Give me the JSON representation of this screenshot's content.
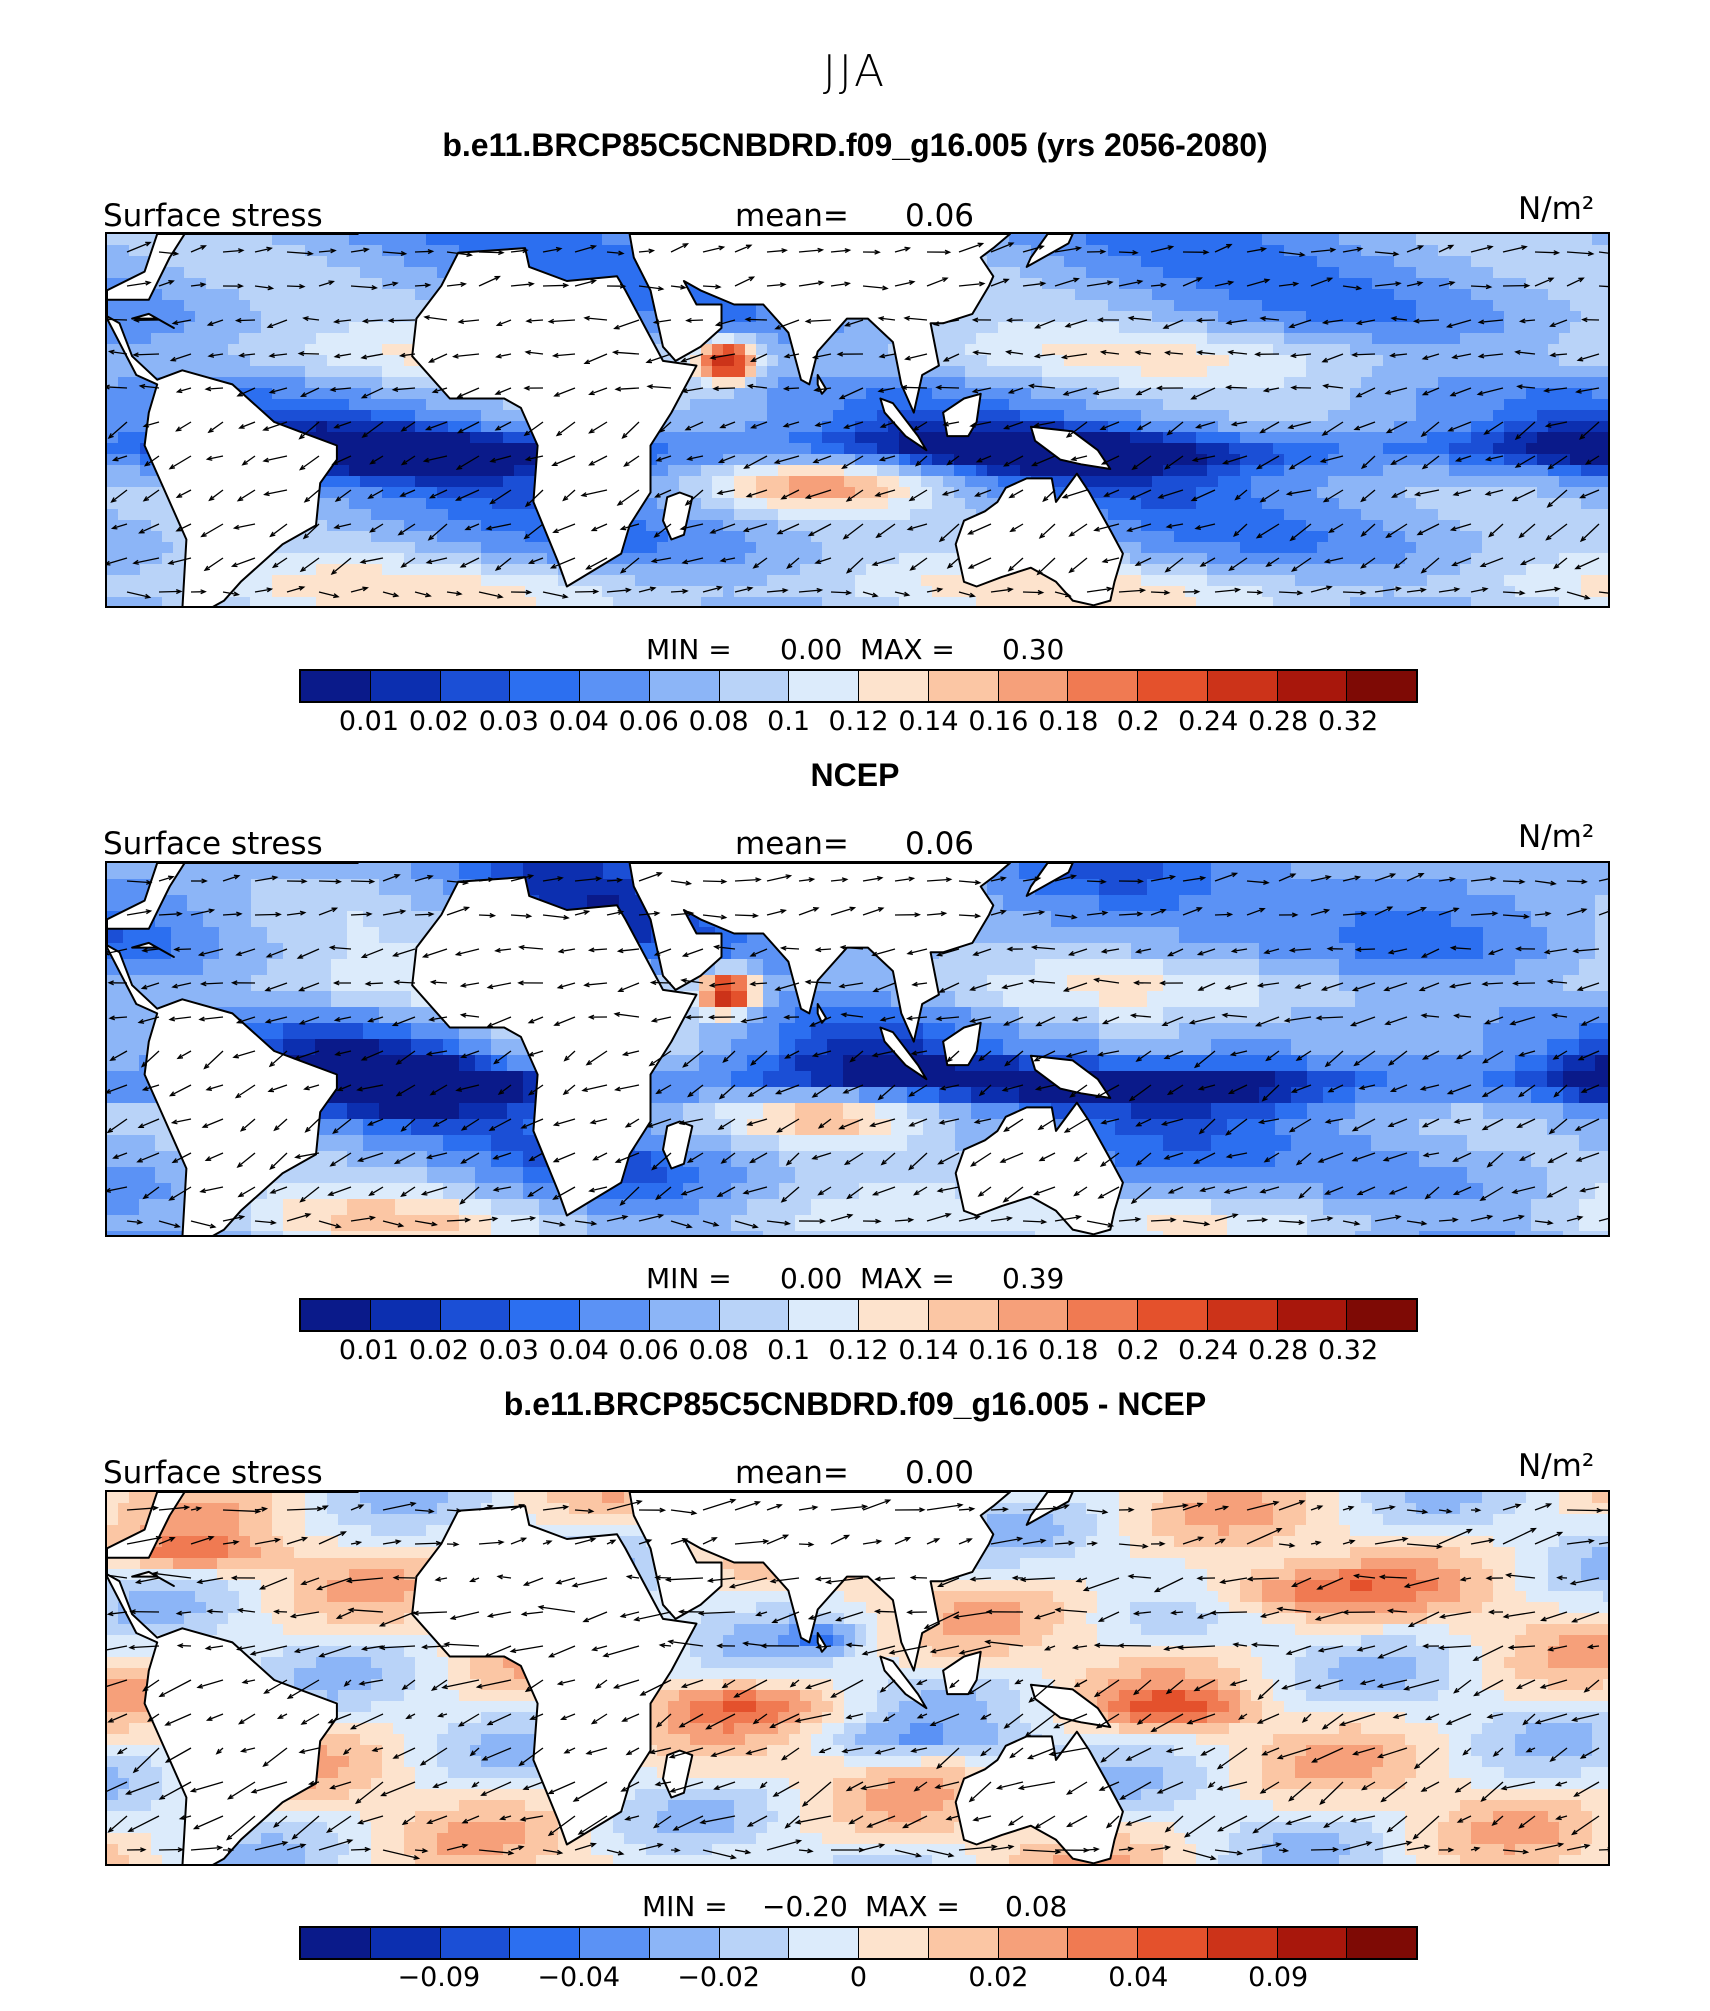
{
  "figure": {
    "title": "JJA"
  },
  "colors": {
    "palette": [
      "#0a1a8a",
      "#0c2fb0",
      "#1b4fd6",
      "#2c6ff0",
      "#5b92f5",
      "#8cb5f7",
      "#b9d3f8",
      "#dcebfb",
      "#fde3cd",
      "#fbc6a4",
      "#f6a07a",
      "#f07a52",
      "#e4512c",
      "#cc3319",
      "#a8170c",
      "#7e0a05"
    ],
    "land": "#ffffff",
    "coast": "#000000"
  },
  "panels": [
    {
      "title": "b.e11.BRCP85C5CNBDRD.f09_g16.005 (yrs 2056-2080)",
      "variable": "Surface stress",
      "mean_label": "mean=",
      "mean_value": "0.06",
      "units": "N/m²",
      "min_label": "MIN =",
      "min_value": "0.00",
      "max_label": "MAX =",
      "max_value": "0.30",
      "ticks": [
        "0.01",
        "0.02",
        "0.03",
        "0.04",
        "0.06",
        "0.08",
        "0.1",
        "0.12",
        "0.14",
        "0.16",
        "0.18",
        "0.2",
        "0.24",
        "0.28",
        "0.32"
      ]
    },
    {
      "title": "NCEP",
      "variable": "Surface stress",
      "mean_label": "mean=",
      "mean_value": "0.06",
      "units": "N/m²",
      "min_label": "MIN =",
      "min_value": "0.00",
      "max_label": "MAX =",
      "max_value": "0.39",
      "ticks": [
        "0.01",
        "0.02",
        "0.03",
        "0.04",
        "0.06",
        "0.08",
        "0.1",
        "0.12",
        "0.14",
        "0.16",
        "0.18",
        "0.2",
        "0.24",
        "0.28",
        "0.32"
      ]
    },
    {
      "title": "b.e11.BRCP85C5CNBDRD.f09_g16.005 - NCEP",
      "variable": "Surface stress",
      "mean_label": "mean=",
      "mean_value": "0.00",
      "units": "N/m²",
      "min_label": "MIN =",
      "min_value": "−0.20",
      "max_label": "MAX =",
      "max_value": "0.08",
      "ticks": [
        "−0.09",
        "−0.04",
        "−0.02",
        "0",
        "0.02",
        "0.04",
        "0.09"
      ]
    }
  ]
}
